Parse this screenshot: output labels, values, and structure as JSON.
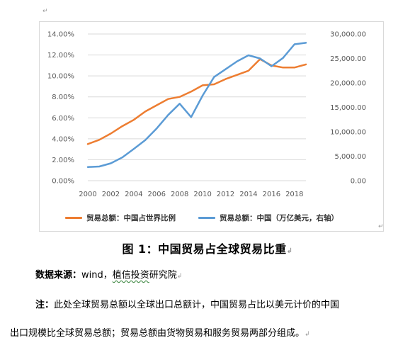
{
  "chart_data": {
    "type": "line",
    "title": "",
    "x": [
      2000,
      2001,
      2002,
      2003,
      2004,
      2005,
      2006,
      2007,
      2008,
      2009,
      2010,
      2011,
      2012,
      2013,
      2014,
      2015,
      2016,
      2017,
      2018,
      2019
    ],
    "x_ticks": [
      "2000",
      "2002",
      "2004",
      "2006",
      "2008",
      "2010",
      "2012",
      "2014",
      "2016",
      "2018"
    ],
    "left_axis": {
      "ylim": [
        0,
        14
      ],
      "ticks": [
        "0.00%",
        "2.00%",
        "4.00%",
        "6.00%",
        "8.00%",
        "10.00%",
        "12.00%",
        "14.00%"
      ]
    },
    "right_axis": {
      "ylim": [
        0,
        30000
      ],
      "ticks": [
        "0.00",
        "5,000.00",
        "10,000.00",
        "15,000.00",
        "20,000.00",
        "25,000.00",
        "30,000.00"
      ]
    },
    "grid": true,
    "legend_position": "bottom",
    "series": [
      {
        "name": "贸易总额：中国占世界比例",
        "axis": "left",
        "color": "#ed7d31",
        "values": [
          3.5,
          3.9,
          4.5,
          5.2,
          5.8,
          6.6,
          7.2,
          7.8,
          8.0,
          8.5,
          9.1,
          9.2,
          9.7,
          10.1,
          10.5,
          11.6,
          11.0,
          10.8,
          10.8,
          11.1
        ]
      },
      {
        "name": "贸易总额：中国（万亿美元，右轴）",
        "axis": "right",
        "color": "#5b9bd5",
        "values": [
          2800,
          2900,
          3550,
          4750,
          6500,
          8300,
          10700,
          13450,
          15750,
          13000,
          17400,
          21200,
          22800,
          24400,
          25650,
          25000,
          23400,
          25100,
          27900,
          28200
        ]
      }
    ]
  },
  "caption": "图 1：中国贸易占全球贸易比重",
  "source": {
    "label": "数据来源：",
    "text_before": "wind，",
    "underlined": "植信投资",
    "text_after": "研究院"
  },
  "note": {
    "label": "注：",
    "line1": "此处全球贸易总额以全球出口总额计，中国贸易占比以美元计价的中国",
    "line2": "出口规模比全球贸易总额；贸易总额由货物贸易和服务贸易两部分组成。"
  },
  "marks": {
    "paragraph": "↵",
    "return": "↲"
  }
}
